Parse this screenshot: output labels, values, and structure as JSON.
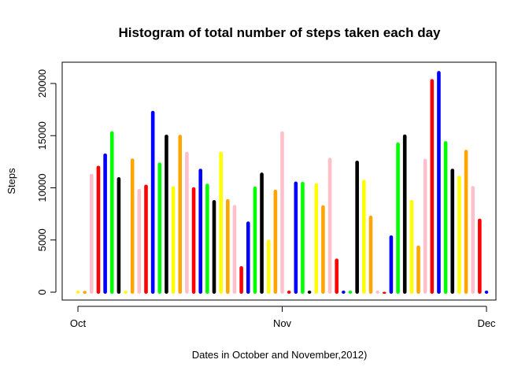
{
  "chart_data": {
    "type": "bar",
    "title": "Histogram of total number of steps taken each day",
    "xlabel": "Dates in October and November,2012)",
    "ylabel": "Steps",
    "ylim": [
      0,
      22000
    ],
    "xlim": [
      0,
      62
    ],
    "yticks": [
      0,
      5000,
      10000,
      15000,
      20000
    ],
    "ytick_labels": [
      "0",
      "5000",
      "10000",
      "15000",
      "20000"
    ],
    "xticks": [
      1,
      31,
      61
    ],
    "xtick_labels": [
      "Oct",
      "Nov",
      "Dec"
    ],
    "grid": false,
    "legend": "none",
    "palette": [
      "#FFD700",
      "#FFA500",
      "#FFC0CB",
      "#FF0000",
      "#0000FF",
      "#00FF00",
      "#000000",
      "#FFFF00",
      "#FFA500",
      "#FFC0CB"
    ],
    "x": [
      1,
      2,
      3,
      4,
      5,
      6,
      7,
      8,
      9,
      10,
      11,
      12,
      13,
      14,
      15,
      16,
      17,
      18,
      19,
      20,
      21,
      22,
      23,
      24,
      25,
      26,
      27,
      28,
      29,
      30,
      31,
      32,
      33,
      34,
      35,
      36,
      37,
      38,
      39,
      40,
      41,
      42,
      43,
      44,
      45,
      46,
      47,
      48,
      49,
      50,
      51,
      52,
      53,
      54,
      55,
      56,
      57,
      58,
      59,
      60,
      61
    ],
    "values": [
      0,
      126,
      11352,
      12116,
      13294,
      15420,
      11015,
      0,
      12811,
      9900,
      10304,
      17382,
      12426,
      15098,
      10139,
      15084,
      13452,
      10056,
      11829,
      10395,
      8821,
      13460,
      8918,
      8355,
      2492,
      6778,
      10119,
      11458,
      5018,
      9819,
      15414,
      0,
      10600,
      10571,
      0,
      10439,
      8334,
      12883,
      3219,
      0,
      0,
      12608,
      10765,
      7336,
      0,
      41,
      5441,
      14339,
      15110,
      8841,
      4472,
      12787,
      20427,
      21194,
      14478,
      11834,
      11162,
      13646,
      10183,
      7047,
      0
    ],
    "colors": [
      "#FFFF00",
      "#FFA500",
      "#FFC0CB",
      "#FF0000",
      "#0000FF",
      "#00FF00",
      "#000000",
      "#FFFF00",
      "#FFA500",
      "#FFC0CB",
      "#FF0000",
      "#0000FF",
      "#00FF00",
      "#000000",
      "#FFFF00",
      "#FFA500",
      "#FFC0CB",
      "#FF0000",
      "#0000FF",
      "#00FF00",
      "#000000",
      "#FFFF00",
      "#FFA500",
      "#FFC0CB",
      "#FF0000",
      "#0000FF",
      "#00FF00",
      "#000000",
      "#FFFF00",
      "#FFA500",
      "#FFC0CB",
      "#FF0000",
      "#0000FF",
      "#00FF00",
      "#000000",
      "#FFFF00",
      "#FFA500",
      "#FFC0CB",
      "#FF0000",
      "#0000FF",
      "#00FF00",
      "#000000",
      "#FFFF00",
      "#FFA500",
      "#FFC0CB",
      "#FF0000",
      "#0000FF",
      "#00FF00",
      "#000000",
      "#FFFF00",
      "#FFA500",
      "#FFC0CB",
      "#FF0000",
      "#0000FF",
      "#00FF00",
      "#000000",
      "#FFFF00",
      "#FFA500",
      "#FFC0CB",
      "#FF0000",
      "#0000FF"
    ]
  }
}
